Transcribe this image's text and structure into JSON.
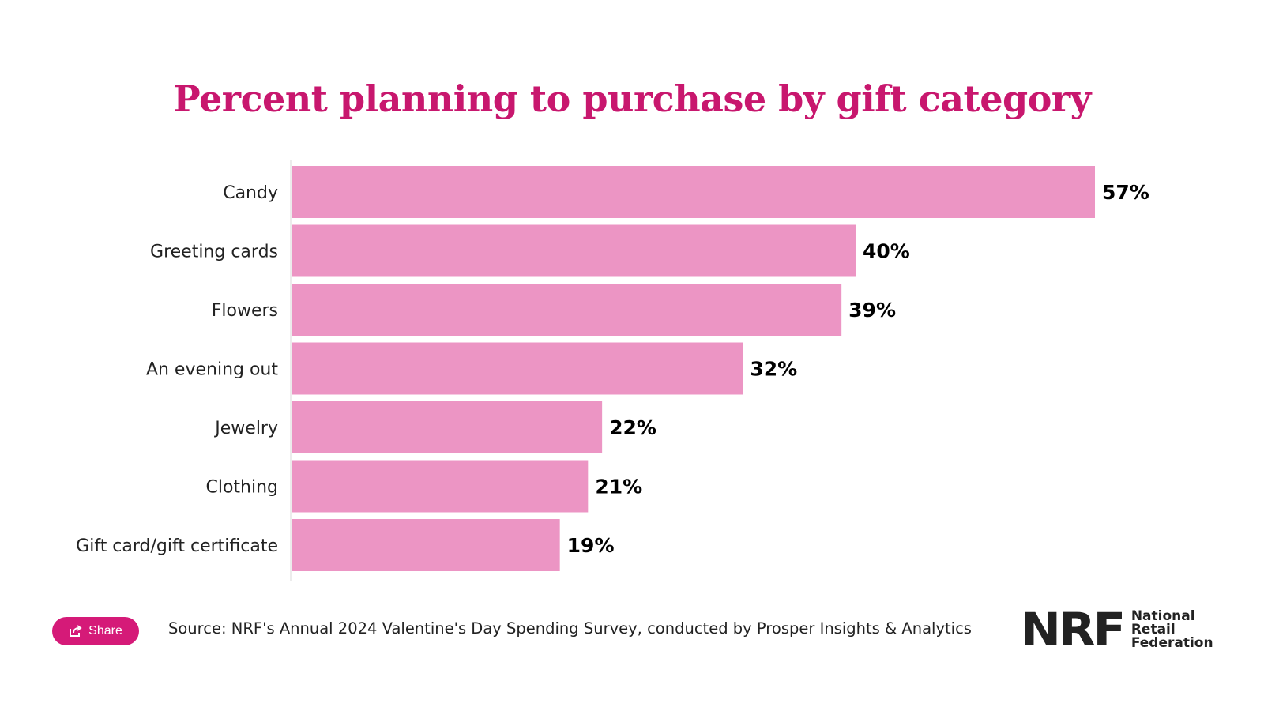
{
  "colors": {
    "title": "#c8176e",
    "bar": "#ec95c4",
    "share_bg": "#d51a78",
    "axis": "#ececec"
  },
  "chart_data": {
    "type": "bar",
    "orientation": "horizontal",
    "title": "Percent planning to purchase by gift category",
    "categories": [
      "Candy",
      "Greeting cards",
      "Flowers",
      "An evening out",
      "Jewelry",
      "Clothing",
      "Gift card/gift certificate"
    ],
    "values": [
      57,
      40,
      39,
      32,
      22,
      21,
      19
    ],
    "value_labels": [
      "57%",
      "40%",
      "39%",
      "32%",
      "22%",
      "21%",
      "19%"
    ],
    "unit": "%",
    "xlim": [
      0,
      57
    ],
    "grid": false,
    "legend": "none"
  },
  "footer": {
    "share_label": "Share",
    "share_icon": "share-icon",
    "source": "Source: NRF's Annual 2024 Valentine's Day Spending Survey, conducted by Prosper Insights & Analytics"
  },
  "logo": {
    "mark": "NRF",
    "words": [
      "National",
      "Retail",
      "Federation"
    ]
  }
}
